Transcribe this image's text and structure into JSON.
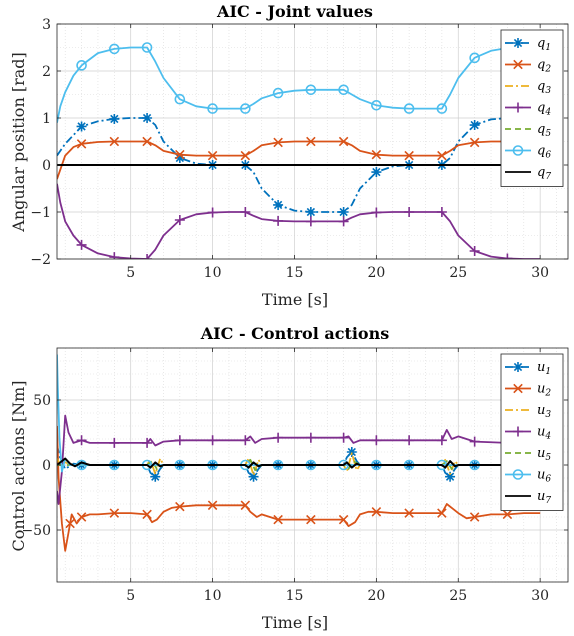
{
  "chart_data": [
    {
      "type": "line",
      "title": "AIC - Joint values",
      "xlabel": "Time [s]",
      "ylabel": "Angular position [rad]",
      "xlim": [
        0.5,
        31.7
      ],
      "ylim": [
        -2,
        3
      ],
      "xticks": [
        5,
        10,
        15,
        20,
        25,
        30
      ],
      "yticks": [
        -2,
        -1,
        0,
        1,
        2,
        3
      ],
      "grid": true,
      "legend_position": "top-right",
      "series": [
        {
          "name": "q",
          "sub": "1",
          "color": "#0072BD",
          "dash": "dashdot",
          "marker": "asterisk",
          "x": [
            0.5,
            1,
            2,
            3,
            4,
            5,
            6,
            6.5,
            7,
            8,
            9,
            10,
            11,
            12,
            12.5,
            13,
            14,
            15,
            16,
            17,
            18,
            18.5,
            19,
            20,
            21,
            22,
            23,
            24,
            24.5,
            25,
            26,
            27,
            28,
            29,
            30
          ],
          "y": [
            0.2,
            0.45,
            0.82,
            0.93,
            0.98,
            1.0,
            1.0,
            0.85,
            0.5,
            0.15,
            0.03,
            0.0,
            0.0,
            0.0,
            -0.15,
            -0.5,
            -0.85,
            -0.97,
            -1.0,
            -1.0,
            -1.0,
            -0.85,
            -0.5,
            -0.15,
            -0.03,
            0.0,
            0.0,
            0.0,
            0.15,
            0.5,
            0.85,
            0.97,
            1.0,
            1.0,
            1.0
          ],
          "marker_x": [
            2,
            4,
            6,
            8,
            10,
            12,
            14,
            16,
            18,
            20,
            22,
            24,
            26,
            28
          ]
        },
        {
          "name": "q",
          "sub": "2",
          "color": "#D95319",
          "dash": "solid",
          "marker": "x",
          "x": [
            0.5,
            0.7,
            1,
            1.5,
            2,
            3,
            4,
            5,
            6,
            6.5,
            7,
            8,
            9,
            10,
            11,
            12,
            12.5,
            13,
            14,
            15,
            16,
            17,
            18,
            18.5,
            19,
            20,
            21,
            22,
            23,
            24,
            24.5,
            25,
            26,
            27,
            28,
            29,
            30
          ],
          "y": [
            -0.3,
            -0.1,
            0.2,
            0.38,
            0.45,
            0.49,
            0.5,
            0.5,
            0.5,
            0.42,
            0.3,
            0.22,
            0.2,
            0.2,
            0.2,
            0.2,
            0.3,
            0.42,
            0.48,
            0.5,
            0.5,
            0.5,
            0.5,
            0.42,
            0.3,
            0.22,
            0.2,
            0.2,
            0.2,
            0.2,
            0.3,
            0.42,
            0.48,
            0.5,
            0.5,
            0.5,
            0.5
          ],
          "marker_x": [
            2,
            4,
            6,
            8,
            10,
            12,
            14,
            16,
            18,
            20,
            22,
            24,
            26,
            28
          ]
        },
        {
          "name": "q",
          "sub": "3",
          "color": "#EDB120",
          "dash": "dashdot",
          "marker": "none",
          "x": [
            0.5,
            30
          ],
          "y": [
            0,
            0
          ]
        },
        {
          "name": "q",
          "sub": "4",
          "color": "#7E2F8E",
          "dash": "solid",
          "marker": "plus",
          "x": [
            0.5,
            0.7,
            1,
            1.5,
            2,
            3,
            4,
            5,
            6,
            6.5,
            7,
            8,
            9,
            10,
            11,
            12,
            12.5,
            13,
            14,
            15,
            16,
            17,
            18,
            18.5,
            19,
            20,
            21,
            22,
            23,
            24,
            24.5,
            25,
            26,
            27,
            28,
            29,
            30
          ],
          "y": [
            -0.4,
            -0.8,
            -1.2,
            -1.5,
            -1.7,
            -1.88,
            -1.96,
            -1.99,
            -2.0,
            -1.8,
            -1.5,
            -1.17,
            -1.05,
            -1.01,
            -1.0,
            -1.0,
            -1.08,
            -1.15,
            -1.19,
            -1.2,
            -1.2,
            -1.2,
            -1.2,
            -1.12,
            -1.05,
            -1.01,
            -1.0,
            -1.0,
            -1.0,
            -1.0,
            -1.2,
            -1.5,
            -1.83,
            -1.95,
            -1.99,
            -2.0,
            -2.0
          ],
          "marker_x": [
            2,
            4,
            6,
            8,
            10,
            12,
            14,
            16,
            18,
            20,
            22,
            24,
            26,
            28
          ]
        },
        {
          "name": "q",
          "sub": "5",
          "color": "#77AC30",
          "dash": "dashed",
          "marker": "none",
          "x": [
            0.5,
            30
          ],
          "y": [
            0,
            0
          ]
        },
        {
          "name": "q",
          "sub": "6",
          "color": "#4DBEEE",
          "dash": "solid",
          "marker": "circle",
          "x": [
            0.5,
            0.7,
            1,
            1.5,
            2,
            3,
            4,
            5,
            6,
            6.5,
            7,
            8,
            9,
            10,
            11,
            12,
            12.5,
            13,
            14,
            15,
            16,
            17,
            18,
            18.5,
            19,
            20,
            21,
            22,
            23,
            24,
            24.5,
            25,
            26,
            27,
            28,
            29,
            30
          ],
          "y": [
            0.9,
            1.25,
            1.55,
            1.9,
            2.12,
            2.38,
            2.47,
            2.5,
            2.5,
            2.2,
            1.85,
            1.4,
            1.25,
            1.2,
            1.2,
            1.2,
            1.3,
            1.42,
            1.53,
            1.58,
            1.6,
            1.6,
            1.6,
            1.5,
            1.4,
            1.27,
            1.22,
            1.2,
            1.2,
            1.2,
            1.5,
            1.85,
            2.28,
            2.43,
            2.49,
            2.5,
            2.5
          ],
          "marker_x": [
            2,
            4,
            6,
            8,
            10,
            12,
            14,
            16,
            18,
            20,
            22,
            24,
            26,
            28
          ]
        },
        {
          "name": "q",
          "sub": "7",
          "color": "#000000",
          "dash": "solid",
          "marker": "none",
          "x": [
            0.5,
            30
          ],
          "y": [
            0,
            0
          ]
        }
      ]
    },
    {
      "type": "line",
      "title": "AIC - Control actions",
      "xlabel": "Time [s]",
      "ylabel": "Control actions [Nm]",
      "xlim": [
        0.5,
        31.7
      ],
      "ylim": [
        -90,
        90
      ],
      "xticks": [
        5,
        10,
        15,
        20,
        25,
        30
      ],
      "yticks": [
        -50,
        0,
        50
      ],
      "grid": true,
      "legend_position": "top-right",
      "series": [
        {
          "name": "u",
          "sub": "1",
          "color": "#0072BD",
          "dash": "dashdot",
          "marker": "asterisk",
          "x": [
            0.5,
            0.7,
            1,
            1.5,
            2,
            3,
            4,
            5,
            6,
            6.2,
            6.5,
            6.8,
            7,
            8,
            10,
            12,
            12.2,
            12.5,
            12.8,
            13,
            14,
            16,
            18,
            18.2,
            18.5,
            18.8,
            19,
            20,
            22,
            24,
            24.2,
            24.5,
            24.8,
            25,
            26,
            28,
            30
          ],
          "y": [
            15,
            5,
            -3,
            1,
            0,
            0,
            0,
            0,
            0,
            -6,
            -9,
            -3,
            0,
            0,
            0,
            0,
            -6,
            -9,
            -3,
            0,
            0,
            0,
            0,
            6,
            10,
            3,
            0,
            0,
            0,
            0,
            -6,
            -9,
            -3,
            0,
            0,
            0,
            0
          ],
          "marker_x": [
            2,
            4,
            6.5,
            8,
            10,
            12.5,
            14,
            16,
            18.5,
            20,
            22,
            24.5,
            26,
            28
          ]
        },
        {
          "name": "u",
          "sub": "2",
          "color": "#D95319",
          "dash": "solid",
          "marker": "x",
          "x": [
            0.5,
            0.6,
            0.8,
            1,
            1.2,
            1.4,
            1.7,
            2,
            2.5,
            3,
            4,
            5,
            6,
            6.3,
            6.6,
            7,
            7.5,
            8,
            9,
            10,
            11,
            12,
            12.3,
            12.7,
            13,
            13.5,
            14,
            15,
            16,
            17,
            18,
            18.3,
            18.7,
            19,
            19.5,
            20,
            21,
            22,
            23,
            24,
            24.3,
            24.7,
            25,
            25.5,
            26,
            27,
            28,
            29,
            30
          ],
          "y": [
            30,
            -10,
            -45,
            -66,
            -52,
            -38,
            -45,
            -40,
            -38,
            -38,
            -37,
            -37,
            -38,
            -44,
            -42,
            -36,
            -33,
            -32,
            -31,
            -31,
            -31,
            -31,
            -36,
            -40,
            -38,
            -40,
            -42,
            -42,
            -42,
            -42,
            -42,
            -47,
            -44,
            -38,
            -36,
            -36,
            -37,
            -37,
            -37,
            -37,
            -30,
            -34,
            -37,
            -41,
            -40,
            -38,
            -38,
            -37,
            -37
          ],
          "marker_x": [
            1.3,
            2,
            4,
            6,
            8,
            10,
            12,
            14,
            16,
            18,
            20,
            22,
            24,
            26,
            28
          ]
        },
        {
          "name": "u",
          "sub": "3",
          "color": "#EDB120",
          "dash": "dashdot",
          "marker": "none",
          "x": [
            0.5,
            0.8,
            1,
            1.5,
            2,
            6,
            6.2,
            6.5,
            6.8,
            7,
            12,
            12.2,
            12.5,
            12.8,
            13,
            18,
            18.2,
            18.5,
            18.8,
            19,
            24,
            24.2,
            24.5,
            24.8,
            25,
            30
          ],
          "y": [
            5,
            -2,
            2,
            0,
            0,
            0,
            4,
            -7,
            5,
            0,
            0,
            5,
            -8,
            4,
            0,
            0,
            -5,
            9,
            -4,
            0,
            0,
            4,
            -7,
            3,
            0,
            0
          ]
        },
        {
          "name": "u",
          "sub": "4",
          "color": "#7E2F8E",
          "dash": "solid",
          "marker": "plus",
          "x": [
            0.5,
            0.6,
            0.8,
            1,
            1.2,
            1.5,
            2,
            2.5,
            3,
            4,
            5,
            6,
            6.2,
            6.5,
            7,
            8,
            10,
            12,
            12.3,
            12.6,
            13,
            14,
            16,
            18,
            18.3,
            18.6,
            19,
            20,
            22,
            24,
            24.3,
            24.6,
            25,
            26,
            28,
            30
          ],
          "y": [
            -20,
            -30,
            -5,
            38,
            25,
            17,
            19,
            17,
            17,
            17,
            17,
            17,
            20,
            15,
            18,
            19,
            19,
            19,
            22,
            17,
            20,
            21,
            21,
            21,
            22,
            17,
            19,
            19,
            19,
            19,
            27,
            20,
            22,
            18,
            17,
            17
          ],
          "marker_x": [
            2,
            4,
            6,
            8,
            10,
            12,
            14,
            16,
            18,
            20,
            22,
            24,
            26,
            28
          ]
        },
        {
          "name": "u",
          "sub": "5",
          "color": "#77AC30",
          "dash": "dashed",
          "marker": "none",
          "x": [
            0.5,
            6,
            6.3,
            6.6,
            7,
            12,
            12.3,
            12.6,
            13,
            18,
            18.3,
            18.6,
            19,
            24,
            24.3,
            24.6,
            25,
            30
          ],
          "y": [
            0,
            0,
            3,
            -3,
            0,
            0,
            4,
            -4,
            0,
            0,
            -3,
            3,
            0,
            0,
            3,
            -3,
            0,
            0
          ]
        },
        {
          "name": "u",
          "sub": "6",
          "color": "#4DBEEE",
          "dash": "solid",
          "marker": "circle",
          "x": [
            0.5,
            0.55,
            0.65,
            0.8,
            1,
            1.3,
            2,
            30
          ],
          "y": [
            85,
            60,
            20,
            -5,
            5,
            0,
            0,
            0
          ],
          "marker_x": [
            2,
            4,
            6,
            8,
            10,
            12,
            14,
            16,
            18,
            20,
            22,
            24,
            26,
            28
          ]
        },
        {
          "name": "u",
          "sub": "7",
          "color": "#000000",
          "dash": "solid",
          "marker": "none",
          "x": [
            0.5,
            0.8,
            1,
            1.3,
            1.6,
            2,
            2.5,
            3,
            6,
            6.2,
            6.5,
            6.8,
            7,
            12,
            12.2,
            12.5,
            12.8,
            13,
            18,
            18.2,
            18.5,
            18.8,
            19,
            24,
            24.2,
            24.5,
            24.8,
            25,
            30
          ],
          "y": [
            0,
            3,
            5,
            1,
            -1,
            2,
            0,
            0,
            0,
            -2,
            2,
            -1,
            0,
            0,
            -2,
            2,
            -1,
            0,
            0,
            2,
            -2,
            1,
            0,
            0,
            -2,
            3,
            -1,
            0,
            0
          ]
        }
      ]
    }
  ]
}
